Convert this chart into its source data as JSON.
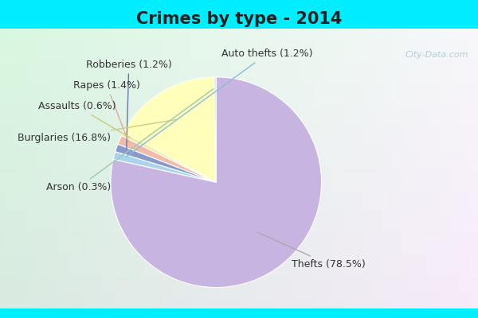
{
  "title": "Crimes by type - 2014",
  "slices": [
    {
      "label": "Thefts (78.5%)",
      "value": 78.5,
      "color": "#c8b4e0"
    },
    {
      "label": "Auto thefts (1.2%)",
      "value": 1.2,
      "color": "#aad4ee"
    },
    {
      "label": "Robberies (1.2%)",
      "value": 1.2,
      "color": "#8899cc"
    },
    {
      "label": "Rapes (1.4%)",
      "value": 1.4,
      "color": "#f0bbaa"
    },
    {
      "label": "Assaults (0.6%)",
      "value": 0.6,
      "color": "#eeee99"
    },
    {
      "label": "Burglaries (16.8%)",
      "value": 16.8,
      "color": "#ffffbb"
    },
    {
      "label": "Arson (0.3%)",
      "value": 0.3,
      "color": "#cceecc"
    }
  ],
  "cyan_color": "#00eeff",
  "bg_green": "#c8e8c8",
  "bg_white": "#e8f4f0",
  "title_fontsize": 15,
  "label_fontsize": 9,
  "watermark": "City-Data.com"
}
